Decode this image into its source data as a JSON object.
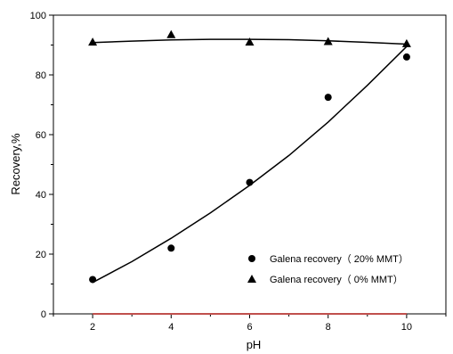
{
  "chart_data": {
    "type": "scatter",
    "xlabel": "pH",
    "ylabel": "Recovery,%",
    "xlim": [
      1,
      11
    ],
    "ylim": [
      0,
      100
    ],
    "xticks": [
      2,
      4,
      6,
      8,
      10
    ],
    "yticks": [
      0,
      20,
      40,
      60,
      80,
      100
    ],
    "legend_position": "lower-right",
    "grid": false,
    "series": [
      {
        "name": "Galena recovery（ 20% MMT）",
        "marker": "circle",
        "color": "#000000",
        "x": [
          2,
          4,
          6,
          8,
          10
        ],
        "y": [
          11.5,
          22,
          44,
          72.5,
          86
        ],
        "fit": [
          [
            2,
            10.5
          ],
          [
            3,
            17.5
          ],
          [
            4,
            25.3
          ],
          [
            5,
            33.8
          ],
          [
            6,
            43.0
          ],
          [
            7,
            53.0
          ],
          [
            8,
            64.2
          ],
          [
            9,
            76.5
          ],
          [
            10,
            89.5
          ]
        ]
      },
      {
        "name": "Galena recovery（ 0% MMT）",
        "marker": "triangle",
        "color": "#000000",
        "x": [
          2,
          4,
          6,
          8,
          10
        ],
        "y": [
          91,
          93.5,
          91,
          91.2,
          90.5
        ],
        "fit": [
          [
            2,
            90.8
          ],
          [
            3,
            91.3
          ],
          [
            4,
            91.7
          ],
          [
            5,
            91.9
          ],
          [
            6,
            91.9
          ],
          [
            7,
            91.8
          ],
          [
            8,
            91.4
          ],
          [
            9,
            90.9
          ],
          [
            10,
            90.3
          ]
        ]
      }
    ],
    "baseline": {
      "y": 0,
      "x_range": [
        2,
        10
      ],
      "color": "#c0504d"
    }
  }
}
